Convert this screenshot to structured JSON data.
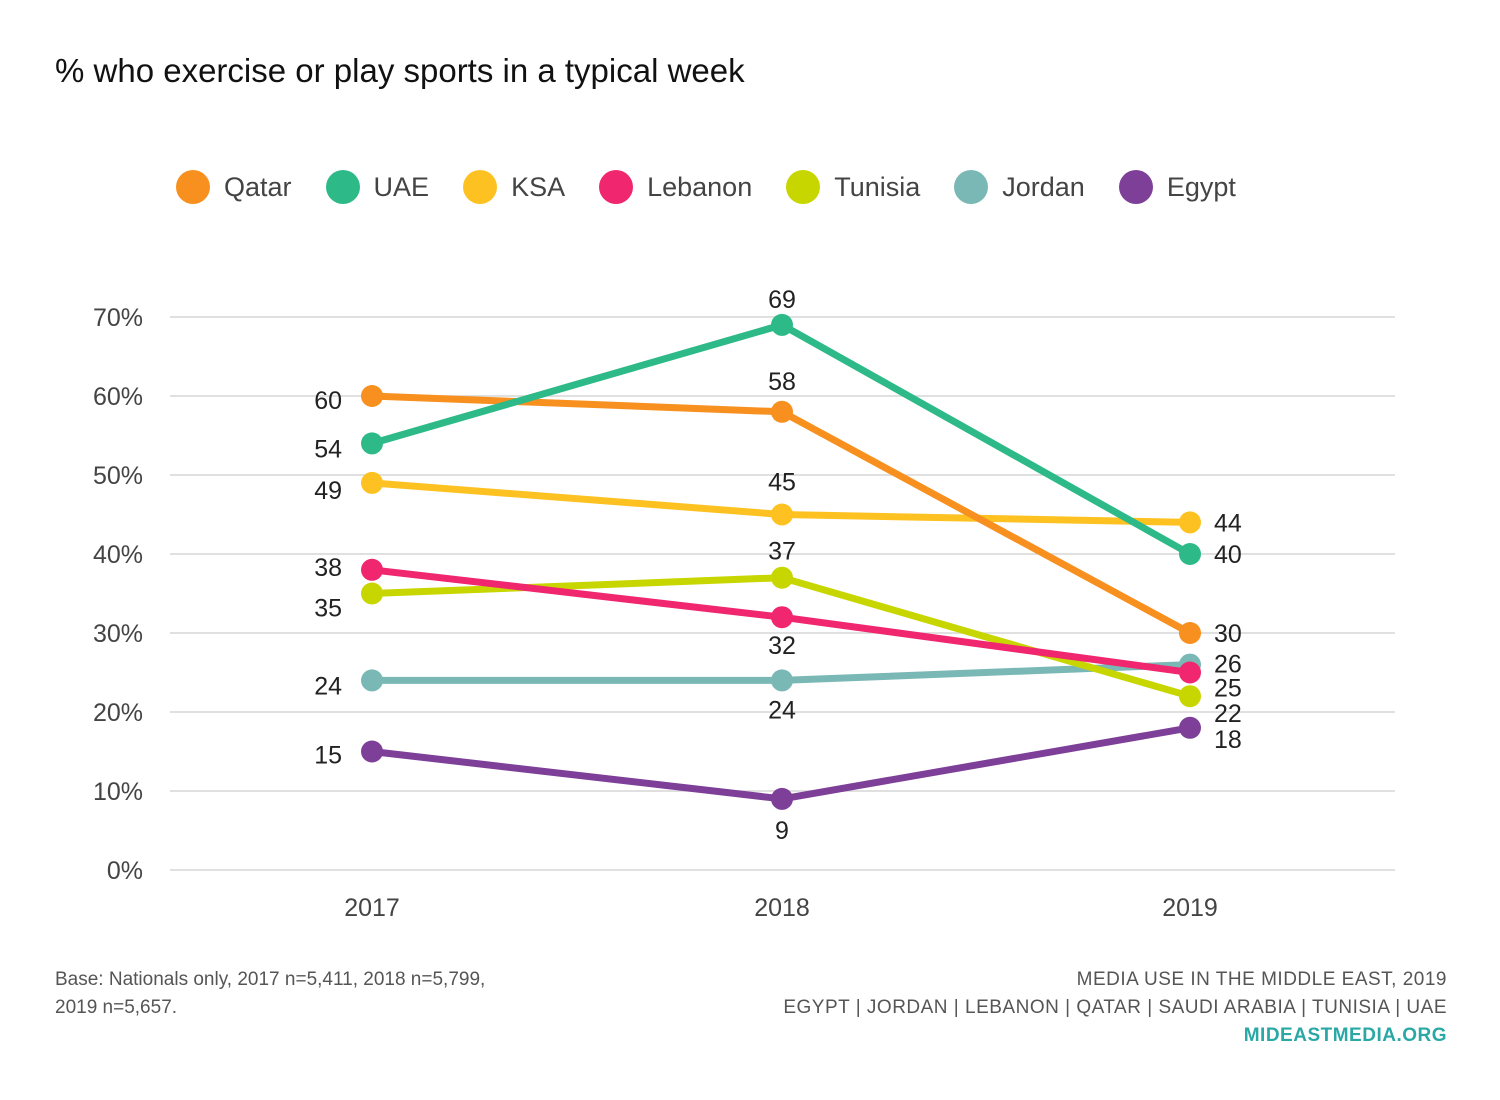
{
  "title": "% who exercise or play sports in a typical week",
  "chart_data": {
    "type": "line",
    "title": "% who exercise or play sports in a typical week",
    "xlabel": "",
    "ylabel": "",
    "x": [
      "2017",
      "2018",
      "2019"
    ],
    "ylim": [
      0,
      70
    ],
    "yticks": [
      0,
      10,
      20,
      30,
      40,
      50,
      60,
      70
    ],
    "ytick_labels": [
      "0%",
      "10%",
      "20%",
      "30%",
      "40%",
      "50%",
      "60%",
      "70%"
    ],
    "grid": true,
    "legend_position": "top",
    "series": [
      {
        "name": "Qatar",
        "color": "#f7901e",
        "values": [
          60,
          58,
          30
        ],
        "labels": [
          "60",
          "58",
          "30"
        ]
      },
      {
        "name": "UAE",
        "color": "#2dba88",
        "values": [
          54,
          69,
          40
        ],
        "labels": [
          "54",
          "69",
          "40"
        ]
      },
      {
        "name": "KSA",
        "color": "#fdc221",
        "values": [
          49,
          45,
          44
        ],
        "labels": [
          "49",
          "45",
          "44"
        ]
      },
      {
        "name": "Lebanon",
        "color": "#f0266f",
        "values": [
          38,
          32,
          25
        ],
        "labels": [
          "38",
          "32",
          "25"
        ]
      },
      {
        "name": "Tunisia",
        "color": "#c8d600",
        "values": [
          35,
          37,
          22
        ],
        "labels": [
          "35",
          "37",
          "22"
        ]
      },
      {
        "name": "Jordan",
        "color": "#7ab8b6",
        "values": [
          24,
          24,
          26
        ],
        "labels": [
          "24",
          "24",
          "26"
        ]
      },
      {
        "name": "Egypt",
        "color": "#7d3f98",
        "values": [
          15,
          9,
          18
        ],
        "labels": [
          "15",
          "9",
          "18"
        ]
      }
    ]
  },
  "footer": {
    "base_line1": "Base: Nationals only, 2017 n=5,411, 2018 n=5,799,",
    "base_line2": "2019 n=5,657.",
    "source_line1": "MEDIA USE IN THE MIDDLE EAST, 2019",
    "source_line2": "EGYPT | JORDAN | LEBANON | QATAR | SAUDI ARABIA | TUNISIA | UAE",
    "url": "MIDEASTMEDIA.ORG"
  }
}
